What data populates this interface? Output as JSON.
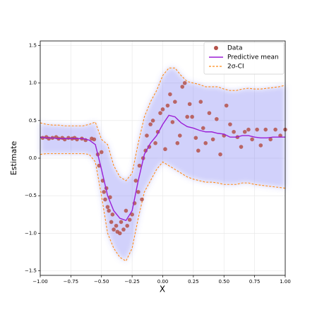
{
  "chart_data": {
    "type": "line",
    "xlabel": "X",
    "ylabel": "Estimate",
    "xlim": [
      -1,
      1
    ],
    "ylim": [
      -1.56,
      1.56
    ],
    "grid": true,
    "legend": "upper right",
    "xticks": [
      {
        "value": -1,
        "label": "−1.00"
      },
      {
        "value": -0.75,
        "label": "−0.75"
      },
      {
        "value": -0.5,
        "label": "−0.50"
      },
      {
        "value": -0.25,
        "label": "−0.25"
      },
      {
        "value": 0,
        "label": "0.00"
      },
      {
        "value": 0.25,
        "label": "0.25"
      },
      {
        "value": 0.5,
        "label": "0.50"
      },
      {
        "value": 0.75,
        "label": "0.75"
      },
      {
        "value": 1,
        "label": "1.00"
      }
    ],
    "yticks": [
      {
        "value": -1.5,
        "label": "−1.5"
      },
      {
        "value": -1,
        "label": "−1.0"
      },
      {
        "value": -0.5,
        "label": "−0.5"
      },
      {
        "value": 0,
        "label": "0.0"
      },
      {
        "value": 0.5,
        "label": "0.5"
      },
      {
        "value": 1,
        "label": "1.0"
      },
      {
        "value": 1.5,
        "label": "1.5"
      }
    ],
    "x": [
      -1,
      -0.95,
      -0.9,
      -0.85,
      -0.8,
      -0.75,
      -0.7,
      -0.65,
      -0.6,
      -0.55,
      -0.5,
      -0.45,
      -0.4,
      -0.35,
      -0.3,
      -0.25,
      -0.2,
      -0.15,
      -0.1,
      -0.05,
      0,
      0.05,
      0.1,
      0.15,
      0.2,
      0.25,
      0.3,
      0.35,
      0.4,
      0.45,
      0.5,
      0.55,
      0.6,
      0.65,
      0.7,
      0.75,
      0.8,
      0.85,
      0.9,
      0.95,
      1
    ],
    "series": [
      {
        "name": "Predictive mean",
        "color": "#9b1fd6",
        "values": [
          0.28,
          0.27,
          0.27,
          0.26,
          0.26,
          0.26,
          0.26,
          0.26,
          0.24,
          0.18,
          -0.15,
          -0.5,
          -0.7,
          -0.8,
          -0.83,
          -0.7,
          -0.3,
          0.05,
          0.2,
          0.3,
          0.45,
          0.57,
          0.55,
          0.47,
          0.42,
          0.4,
          0.37,
          0.35,
          0.35,
          0.33,
          0.32,
          0.28,
          0.28,
          0.3,
          0.3,
          0.28,
          0.27,
          0.27,
          0.28,
          0.28,
          0.28
        ]
      },
      {
        "name": "2σ-CI",
        "color": "#ff8c1a",
        "band_color": "#6f6ff2",
        "upper": [
          0.47,
          0.45,
          0.44,
          0.44,
          0.43,
          0.43,
          0.43,
          0.43,
          0.45,
          0.48,
          0.25,
          0.18,
          -0.1,
          -0.25,
          -0.3,
          -0.2,
          0.2,
          0.55,
          0.75,
          0.9,
          1.1,
          1.2,
          1.2,
          1.1,
          1.02,
          1.0,
          0.98,
          0.95,
          0.95,
          0.95,
          0.92,
          0.9,
          0.9,
          0.92,
          0.93,
          0.92,
          0.92,
          0.93,
          0.94,
          0.95,
          0.97
        ],
        "lower": [
          0.05,
          0.06,
          0.06,
          0.06,
          0.06,
          0.06,
          0.06,
          0.06,
          0.05,
          -0.05,
          -0.5,
          -1.0,
          -1.2,
          -1.32,
          -1.37,
          -1.2,
          -0.8,
          -0.45,
          -0.3,
          -0.15,
          -0.05,
          -0.1,
          -0.15,
          -0.2,
          -0.25,
          -0.28,
          -0.3,
          -0.32,
          -0.32,
          -0.33,
          -0.35,
          -0.35,
          -0.35,
          -0.33,
          -0.33,
          -0.35,
          -0.36,
          -0.37,
          -0.38,
          -0.39,
          -0.4
        ]
      }
    ],
    "points": {
      "name": "Data",
      "color": "#b5524a",
      "x": [
        -0.98,
        -0.95,
        -0.93,
        -0.9,
        -0.87,
        -0.85,
        -0.82,
        -0.8,
        -0.77,
        -0.74,
        -0.72,
        -0.7,
        -0.66,
        -0.63,
        -0.58,
        -0.56,
        -0.53,
        -0.52,
        -0.5,
        -0.49,
        -0.48,
        -0.47,
        -0.46,
        -0.45,
        -0.44,
        -0.43,
        -0.42,
        -0.41,
        -0.4,
        -0.38,
        -0.37,
        -0.35,
        -0.34,
        -0.32,
        -0.3,
        -0.29,
        -0.27,
        -0.25,
        -0.23,
        -0.22,
        -0.2,
        -0.19,
        -0.17,
        -0.16,
        -0.14,
        -0.13,
        -0.11,
        -0.1,
        -0.08,
        -0.06,
        -0.04,
        -0.02,
        0,
        0.02,
        0.04,
        0.06,
        0.08,
        0.1,
        0.12,
        0.14,
        0.16,
        0.18,
        0.2,
        0.22,
        0.24,
        0.27,
        0.29,
        0.31,
        0.33,
        0.35,
        0.38,
        0.41,
        0.44,
        0.47,
        0.5,
        0.52,
        0.55,
        0.58,
        0.61,
        0.64,
        0.67,
        0.7,
        0.73,
        0.77,
        0.8,
        0.84,
        0.88,
        0.92,
        0.96,
        1
      ],
      "y": [
        0.27,
        0.28,
        0.26,
        0.27,
        0.28,
        0.26,
        0.27,
        0.25,
        0.27,
        0.26,
        0.27,
        0.25,
        0.26,
        0.24,
        0.26,
        0.25,
        0.05,
        -0.1,
        0.08,
        -0.3,
        -0.45,
        -0.55,
        -0.4,
        -0.65,
        -0.7,
        -0.52,
        -0.85,
        -0.75,
        -0.95,
        -0.9,
        -0.98,
        -1.0,
        -0.85,
        -0.95,
        -0.7,
        -0.9,
        -0.82,
        -0.75,
        -0.6,
        -0.3,
        -0.45,
        -0.1,
        -0.55,
        0,
        0.1,
        0.3,
        0.15,
        0.45,
        0.5,
        0.2,
        0.35,
        0.6,
        0.65,
        0.12,
        0.7,
        0.85,
        0.48,
        0.75,
        0.2,
        0.3,
        0.95,
        1.0,
        0.55,
        0.72,
        0.55,
        0.27,
        0.1,
        0.75,
        0.4,
        0.2,
        0.6,
        0.25,
        0.52,
        0.05,
        0.3,
        0.7,
        0.45,
        0.35,
        0.28,
        0.15,
        0.35,
        0.38,
        0.25,
        0.38,
        0.17,
        0.38,
        0.25,
        0.38,
        0.3,
        0.38
      ]
    }
  }
}
